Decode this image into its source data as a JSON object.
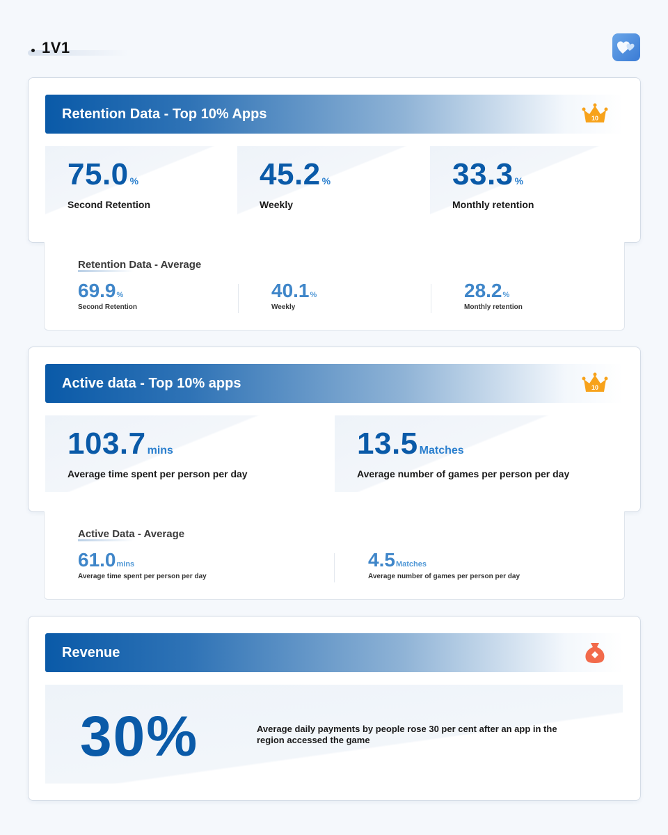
{
  "page": {
    "title": "1V1"
  },
  "icons": {
    "logo": "hearts-logo-icon",
    "crown": "crown-top10-icon",
    "money_bag": "money-bag-icon",
    "crown_badge_text": "10"
  },
  "colors": {
    "primary": "#0a5aa8",
    "accent": "#2a7fce",
    "avg": "#3f86c9"
  },
  "retention_top": {
    "header": "Retention Data - Top 10% Apps",
    "stats": [
      {
        "value": "75.0",
        "unit": "%",
        "label": "Second Retention"
      },
      {
        "value": "45.2",
        "unit": "%",
        "label": "Weekly"
      },
      {
        "value": "33.3",
        "unit": "%",
        "label": "Monthly retention"
      }
    ]
  },
  "retention_avg": {
    "title": "Retention Data - Average",
    "stats": [
      {
        "value": "69.9",
        "unit": "%",
        "label": "Second Retention"
      },
      {
        "value": "40.1",
        "unit": "%",
        "label": "Weekly"
      },
      {
        "value": "28.2",
        "unit": "%",
        "label": "Monthly retention"
      }
    ]
  },
  "active_top": {
    "header": "Active data - Top 10% apps",
    "stats": [
      {
        "value": "103.7",
        "unit": "mins",
        "label": "Average time spent per person per day"
      },
      {
        "value": "13.5",
        "unit": "Matches",
        "label": "Average number of games per person per day"
      }
    ]
  },
  "active_avg": {
    "title": "Active Data - Average",
    "stats": [
      {
        "value": "61.0",
        "unit": "mins",
        "label": "Average time spent per person per day"
      },
      {
        "value": "4.5",
        "unit": "Matches",
        "label": "Average number of games per person per day"
      }
    ]
  },
  "revenue": {
    "header": "Revenue",
    "big_value": "30%",
    "description": "Average daily payments by people rose 30 per cent after an app in the region accessed the game"
  }
}
